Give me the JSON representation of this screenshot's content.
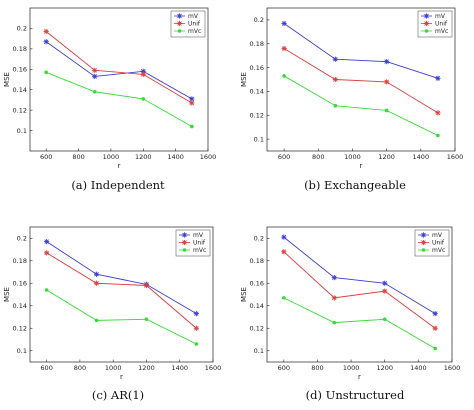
{
  "chart_data": [
    {
      "type": "line",
      "caption": "(a) Independent",
      "xlabel": "r",
      "ylabel": "MSE",
      "xlim": [
        500,
        1600
      ],
      "ylim": [
        0.08,
        0.22
      ],
      "xticks": [
        600,
        800,
        1000,
        1200,
        1400,
        1600
      ],
      "yticks": [
        0.1,
        0.12,
        0.14,
        0.16,
        0.18,
        0.2
      ],
      "ytick_labels": [
        "0.1",
        "0.12",
        "0.14",
        "0.16",
        "0.18",
        "0.2"
      ],
      "legend": "top-right",
      "x": [
        600,
        900,
        1200,
        1500
      ],
      "series": [
        {
          "name": "mV",
          "color": "#3b3bd6",
          "marker": "star",
          "values": [
            0.187,
            0.153,
            0.158,
            0.131
          ]
        },
        {
          "name": "Unif",
          "color": "#e03c3c",
          "marker": "asterisk",
          "values": [
            0.197,
            0.159,
            0.155,
            0.127
          ]
        },
        {
          "name": "mVc",
          "color": "#33dd33",
          "marker": "dot",
          "values": [
            0.157,
            0.138,
            0.131,
            0.104
          ]
        }
      ]
    },
    {
      "type": "line",
      "caption": "(b) Exchangeable",
      "xlabel": "r",
      "ylabel": "MSE",
      "xlim": [
        500,
        1600
      ],
      "ylim": [
        0.09,
        0.21
      ],
      "xticks": [
        600,
        800,
        1000,
        1200,
        1400,
        1600
      ],
      "yticks": [
        0.1,
        0.12,
        0.14,
        0.16,
        0.18,
        0.2
      ],
      "ytick_labels": [
        "0.1",
        "0.12",
        "0.14",
        "0.16",
        "0.18",
        "0.2"
      ],
      "legend": "top-right",
      "x": [
        600,
        900,
        1200,
        1500
      ],
      "series": [
        {
          "name": "mV",
          "color": "#3b3bd6",
          "marker": "star",
          "values": [
            0.197,
            0.167,
            0.165,
            0.151
          ]
        },
        {
          "name": "Unif",
          "color": "#e03c3c",
          "marker": "asterisk",
          "values": [
            0.176,
            0.15,
            0.148,
            0.122
          ]
        },
        {
          "name": "mVc",
          "color": "#33dd33",
          "marker": "dot",
          "values": [
            0.153,
            0.128,
            0.124,
            0.103
          ]
        }
      ]
    },
    {
      "type": "line",
      "caption": "(c) AR(1)",
      "xlabel": "r",
      "ylabel": "MSE",
      "xlim": [
        500,
        1600
      ],
      "ylim": [
        0.09,
        0.21
      ],
      "xticks": [
        600,
        800,
        1000,
        1200,
        1400,
        1600
      ],
      "yticks": [
        0.1,
        0.12,
        0.14,
        0.16,
        0.18,
        0.2
      ],
      "ytick_labels": [
        "0.1",
        "0.12",
        "0.14",
        "0.16",
        "0.18",
        "0.2"
      ],
      "legend": "top-right",
      "x": [
        600,
        900,
        1200,
        1500
      ],
      "series": [
        {
          "name": "mV",
          "color": "#3b3bd6",
          "marker": "star",
          "values": [
            0.197,
            0.168,
            0.159,
            0.133
          ]
        },
        {
          "name": "Unif",
          "color": "#e03c3c",
          "marker": "asterisk",
          "values": [
            0.187,
            0.16,
            0.158,
            0.12
          ]
        },
        {
          "name": "mVc",
          "color": "#33dd33",
          "marker": "dot",
          "values": [
            0.154,
            0.127,
            0.128,
            0.106
          ]
        }
      ]
    },
    {
      "type": "line",
      "caption": "(d) Unstructured",
      "xlabel": "r",
      "ylabel": "MSE",
      "xlim": [
        500,
        1600
      ],
      "ylim": [
        0.09,
        0.21
      ],
      "xticks": [
        600,
        800,
        1000,
        1200,
        1400,
        1600
      ],
      "yticks": [
        0.1,
        0.12,
        0.14,
        0.16,
        0.18,
        0.2
      ],
      "ytick_labels": [
        "0.1",
        "0.12",
        "0.14",
        "0.16",
        "0.18",
        "0.2"
      ],
      "legend": "top-right",
      "x": [
        600,
        900,
        1200,
        1500
      ],
      "series": [
        {
          "name": "mV",
          "color": "#3b3bd6",
          "marker": "star",
          "values": [
            0.201,
            0.165,
            0.16,
            0.133
          ]
        },
        {
          "name": "Unif",
          "color": "#e03c3c",
          "marker": "asterisk",
          "values": [
            0.188,
            0.147,
            0.153,
            0.12
          ]
        },
        {
          "name": "mVc",
          "color": "#33dd33",
          "marker": "dot",
          "values": [
            0.147,
            0.125,
            0.128,
            0.102
          ]
        }
      ]
    }
  ]
}
